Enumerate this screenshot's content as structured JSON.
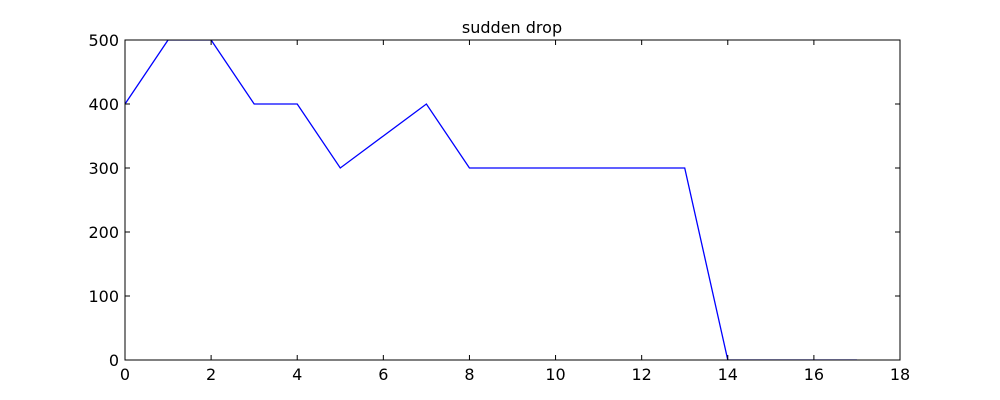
{
  "chart_data": {
    "type": "line",
    "title": "sudden drop",
    "xlabel": "",
    "ylabel": "",
    "xlim": [
      0,
      18
    ],
    "ylim": [
      0,
      500
    ],
    "xticks": [
      0,
      2,
      4,
      6,
      8,
      10,
      12,
      14,
      16,
      18
    ],
    "yticks": [
      0,
      100,
      200,
      300,
      400,
      500
    ],
    "grid": false,
    "legend": "none",
    "series": [
      {
        "name": "sudden drop",
        "color": "#0000ff",
        "x": [
          0,
          1,
          2,
          3,
          4,
          5,
          6,
          7,
          8,
          9,
          10,
          11,
          12,
          13,
          14,
          15,
          16,
          17
        ],
        "y": [
          400,
          500,
          500,
          400,
          400,
          300,
          350,
          400,
          300,
          300,
          300,
          300,
          300,
          300,
          0,
          0,
          0,
          0
        ]
      }
    ]
  }
}
